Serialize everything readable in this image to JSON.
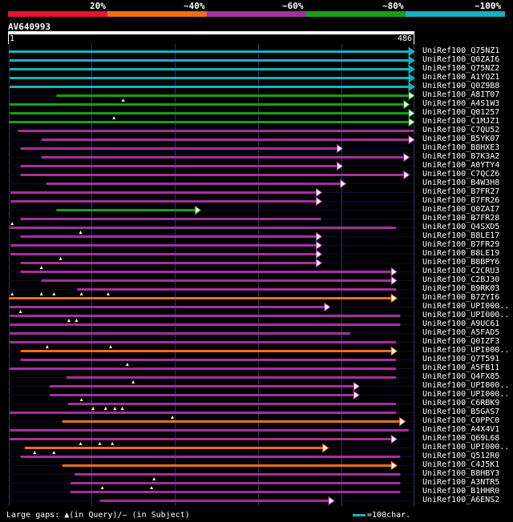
{
  "colors": {
    "c20": "#e8152b",
    "c40": "#e8701a",
    "c60": "#a4309e",
    "c80": "#1a9e1a",
    "c100": "#15b3c2",
    "grid": "#333366",
    "base": "#0b0b38",
    "gap": "#ffff99"
  },
  "legend": {
    "p20": "20%",
    "p40": "~40%",
    "p60": "~60%",
    "p80": "~80%",
    "p100": "~100%"
  },
  "query": {
    "name": "AV640993",
    "start": "1",
    "end": "486",
    "length": 486
  },
  "footer": {
    "gaps": "Large gaps: ▲(in Query)/– (in Subject)",
    "scale": "=100char."
  },
  "hits": [
    {
      "name": "UniRef100_Q75NZ1",
      "cls": "c100",
      "s": 1,
      "e": 486,
      "arrow": true,
      "gaps": []
    },
    {
      "name": "UniRef100_Q0ZAI6",
      "cls": "c100",
      "s": 2,
      "e": 486,
      "arrow": true,
      "gaps": []
    },
    {
      "name": "UniRef100_Q75NZ2",
      "cls": "c100",
      "s": 2,
      "e": 486,
      "arrow": true,
      "gaps": []
    },
    {
      "name": "UniRef100_A1YQZ1",
      "cls": "c100",
      "s": 2,
      "e": 486,
      "arrow": true,
      "gaps": []
    },
    {
      "name": "UniRef100_Q0Z9B8",
      "cls": "c100",
      "s": 2,
      "e": 486,
      "arrow": true,
      "gaps": []
    },
    {
      "name": "UniRef100_A8IT07",
      "cls": "c80",
      "s": 58,
      "e": 486,
      "arrow": true,
      "gaps": []
    },
    {
      "name": "UniRef100_A4S1W3",
      "cls": "c80",
      "s": 2,
      "e": 480,
      "arrow": true,
      "gaps": [
        138
      ]
    },
    {
      "name": "UniRef100_Q01257",
      "cls": "c80",
      "s": 2,
      "e": 486,
      "arrow": true,
      "gaps": []
    },
    {
      "name": "UniRef100_C1MJZ1",
      "cls": "c80",
      "s": 1,
      "e": 486,
      "arrow": true,
      "gaps": [
        127
      ]
    },
    {
      "name": "UniRef100_C7QU52",
      "cls": "c60",
      "s": 12,
      "e": 486,
      "arrow": false,
      "gaps": []
    },
    {
      "name": "UniRef100_B5YK07",
      "cls": "c60",
      "s": 40,
      "e": 486,
      "arrow": true,
      "gaps": []
    },
    {
      "name": "UniRef100_B8HXE3",
      "cls": "c60",
      "s": 15,
      "e": 400,
      "arrow": true,
      "gaps": []
    },
    {
      "name": "UniRef100_B7K3A2",
      "cls": "c60",
      "s": 40,
      "e": 480,
      "arrow": true,
      "gaps": []
    },
    {
      "name": "UniRef100_A0YTY4",
      "cls": "c60",
      "s": 15,
      "e": 400,
      "arrow": true,
      "gaps": []
    },
    {
      "name": "UniRef100_C7QCZ6",
      "cls": "c60",
      "s": 15,
      "e": 480,
      "arrow": true,
      "gaps": []
    },
    {
      "name": "UniRef100_B4W3H8",
      "cls": "c60",
      "s": 46,
      "e": 404,
      "arrow": true,
      "gaps": []
    },
    {
      "name": "UniRef100_B7FR27",
      "cls": "c60",
      "s": 3,
      "e": 375,
      "arrow": true,
      "gaps": []
    },
    {
      "name": "UniRef100_B7FR26",
      "cls": "c60",
      "s": 3,
      "e": 375,
      "arrow": true,
      "gaps": []
    },
    {
      "name": "UniRef100_Q0ZAI7",
      "cls": "c80",
      "s": 58,
      "e": 230,
      "arrow": true,
      "gaps": []
    },
    {
      "name": "UniRef100_B7FR28",
      "cls": "c60",
      "s": 15,
      "e": 375,
      "arrow": false,
      "gaps": []
    },
    {
      "name": "UniRef100_Q4SXD5",
      "cls": "c60",
      "s": 2,
      "e": 465,
      "arrow": false,
      "gaps": [
        5
      ]
    },
    {
      "name": "UniRef100_B8LE17",
      "cls": "c60",
      "s": 15,
      "e": 375,
      "arrow": true,
      "gaps": [
        87
      ]
    },
    {
      "name": "UniRef100_B7FR29",
      "cls": "c60",
      "s": 3,
      "e": 375,
      "arrow": true,
      "gaps": []
    },
    {
      "name": "UniRef100_B8LE19",
      "cls": "c60",
      "s": 3,
      "e": 375,
      "arrow": true,
      "gaps": []
    },
    {
      "name": "UniRef100_B8BPY6",
      "cls": "c60",
      "s": 15,
      "e": 375,
      "arrow": true,
      "gaps": [
        63
      ]
    },
    {
      "name": "UniRef100_C2CRU3",
      "cls": "c60",
      "s": 15,
      "e": 465,
      "arrow": true,
      "gaps": [
        40
      ]
    },
    {
      "name": "UniRef100_C2BJ30",
      "cls": "c60",
      "s": 40,
      "e": 465,
      "arrow": true,
      "gaps": []
    },
    {
      "name": "UniRef100_B9RK03",
      "cls": "c60",
      "s": 83,
      "e": 465,
      "arrow": false,
      "gaps": []
    },
    {
      "name": "UniRef100_B7ZYI6",
      "cls": "c40",
      "s": 1,
      "e": 465,
      "arrow": true,
      "gaps": [
        5,
        40,
        55,
        88,
        120
      ]
    },
    {
      "name": "UniRef100_UPI000..",
      "cls": "c60",
      "s": 2,
      "e": 385,
      "arrow": true,
      "gaps": []
    },
    {
      "name": "UniRef100_UPI000..",
      "cls": "c60",
      "s": 2,
      "e": 470,
      "arrow": false,
      "gaps": [
        15
      ]
    },
    {
      "name": "UniRef100_A9UC61",
      "cls": "c60",
      "s": 2,
      "e": 470,
      "arrow": false,
      "gaps": [
        73,
        82
      ]
    },
    {
      "name": "UniRef100_A5FAD5",
      "cls": "c60",
      "s": 2,
      "e": 410,
      "arrow": false,
      "gaps": []
    },
    {
      "name": "UniRef100_Q0IZF3",
      "cls": "c60",
      "s": 2,
      "e": 465,
      "arrow": false,
      "gaps": []
    },
    {
      "name": "UniRef100_UPI000..",
      "cls": "c40",
      "s": 15,
      "e": 465,
      "arrow": true,
      "gaps": [
        47,
        123
      ]
    },
    {
      "name": "UniRef100_Q7T591",
      "cls": "c60",
      "s": 15,
      "e": 465,
      "arrow": false,
      "gaps": []
    },
    {
      "name": "UniRef100_A5FB11",
      "cls": "c60",
      "s": 2,
      "e": 465,
      "arrow": false,
      "gaps": [
        143
      ]
    },
    {
      "name": "UniRef100_Q4FX85",
      "cls": "c60",
      "s": 70,
      "e": 465,
      "arrow": false,
      "gaps": []
    },
    {
      "name": "UniRef100_UPI000..",
      "cls": "c60",
      "s": 50,
      "e": 420,
      "arrow": true,
      "gaps": [
        150
      ]
    },
    {
      "name": "UniRef100_UPI000..",
      "cls": "c60",
      "s": 50,
      "e": 420,
      "arrow": true,
      "gaps": []
    },
    {
      "name": "UniRef100_C6RBK9",
      "cls": "c60",
      "s": 72,
      "e": 465,
      "arrow": false,
      "gaps": [
        88
      ]
    },
    {
      "name": "UniRef100_B5GAS7",
      "cls": "c60",
      "s": 2,
      "e": 465,
      "arrow": false,
      "gaps": [
        102,
        117,
        128,
        137
      ]
    },
    {
      "name": "UniRef100_C0PPC0",
      "cls": "c40",
      "s": 65,
      "e": 475,
      "arrow": true,
      "gaps": [
        197
      ]
    },
    {
      "name": "UniRef100_A4X4V1",
      "cls": "c60",
      "s": 2,
      "e": 480,
      "arrow": false,
      "gaps": []
    },
    {
      "name": "UniRef100_Q69L68",
      "cls": "c60",
      "s": 2,
      "e": 465,
      "arrow": true,
      "gaps": []
    },
    {
      "name": "UniRef100_UPI000..",
      "cls": "c40",
      "s": 20,
      "e": 383,
      "arrow": true,
      "gaps": [
        87,
        110,
        125
      ]
    },
    {
      "name": "UniRef100_Q512R0",
      "cls": "c60",
      "s": 15,
      "e": 470,
      "arrow": false,
      "gaps": [
        32,
        55
      ]
    },
    {
      "name": "UniRef100_C4J5K1",
      "cls": "c40",
      "s": 65,
      "e": 465,
      "arrow": true,
      "gaps": []
    },
    {
      "name": "UniRef100_B8HBY3",
      "cls": "c60",
      "s": 80,
      "e": 470,
      "arrow": false,
      "gaps": []
    },
    {
      "name": "UniRef100_A3NTR5",
      "cls": "c60",
      "s": 75,
      "e": 470,
      "arrow": false,
      "gaps": [
        175
      ]
    },
    {
      "name": "UniRef100_B1HHR0",
      "cls": "c60",
      "s": 75,
      "e": 470,
      "arrow": false,
      "gaps": [
        113,
        172
      ]
    },
    {
      "name": "UniRef100_A6ENS2",
      "cls": "c60",
      "s": 110,
      "e": 390,
      "arrow": true,
      "gaps": []
    }
  ]
}
